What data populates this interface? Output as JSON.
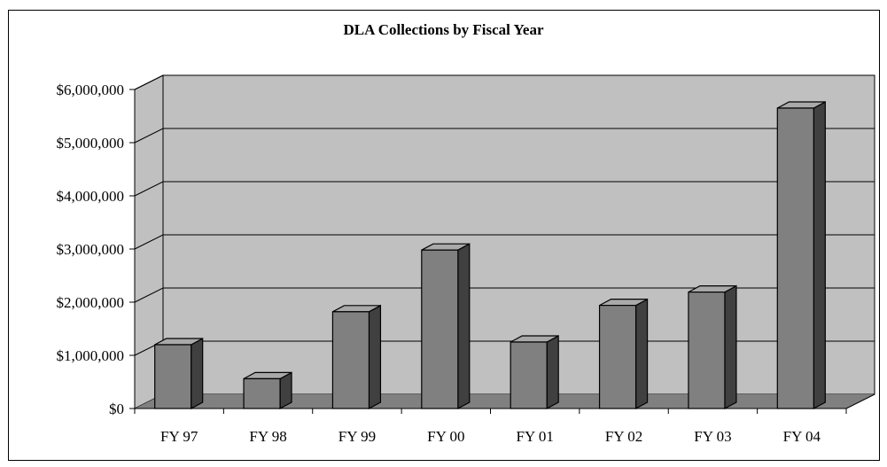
{
  "chart_data": {
    "type": "bar",
    "title": "DLA Collections by Fiscal Year",
    "categories": [
      "FY 97",
      "FY 98",
      "FY 99",
      "FY 00",
      "FY 01",
      "FY 02",
      "FY 03",
      "FY 04"
    ],
    "values": [
      1200000,
      560000,
      1820000,
      2980000,
      1250000,
      1940000,
      2190000,
      5650000
    ],
    "y_ticks": [
      "$0",
      "$1,000,000",
      "$2,000,000",
      "$3,000,000",
      "$4,000,000",
      "$5,000,000",
      "$6,000,000"
    ],
    "ylim": [
      0,
      6000000
    ],
    "grid": true,
    "three_d": true,
    "colors": {
      "bar_front": "#808080",
      "bar_top": "#a9a9a9",
      "bar_side": "#404040",
      "wall": "#c0c0c0",
      "floor": "#808080",
      "gridline": "#000000"
    }
  }
}
